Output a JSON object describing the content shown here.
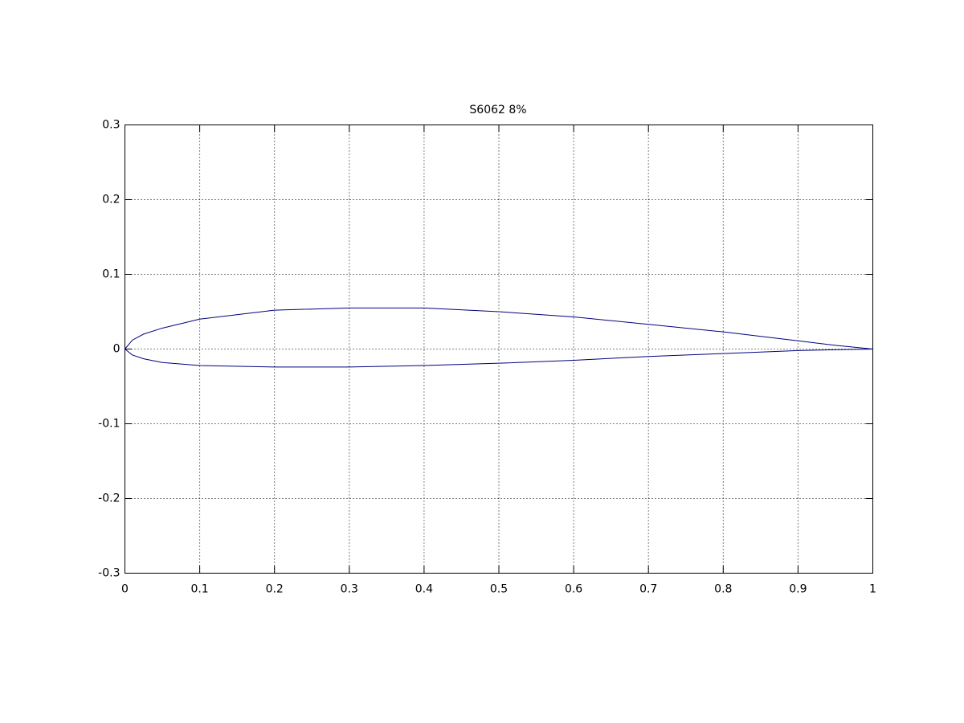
{
  "chart_data": {
    "type": "line",
    "title": "S6062 8%",
    "x": [
      0,
      0.01,
      0.025,
      0.05,
      0.1,
      0.2,
      0.3,
      0.4,
      0.5,
      0.6,
      0.7,
      0.8,
      0.9,
      0.95,
      1
    ],
    "series": [
      {
        "color": "#00007f",
        "values": [
          0,
          0.012,
          0.02,
          0.028,
          0.04,
          0.052,
          0.055,
          0.055,
          0.05,
          0.043,
          0.033,
          0.023,
          0.011,
          0.005,
          0
        ]
      },
      {
        "color": "#00007f",
        "values": [
          0,
          -0.008,
          -0.013,
          -0.018,
          -0.022,
          -0.024,
          -0.024,
          -0.022,
          -0.019,
          -0.015,
          -0.01,
          -0.006,
          -0.002,
          -0.001,
          0
        ]
      }
    ],
    "xlim": [
      0,
      1
    ],
    "ylim": [
      -0.3,
      0.3
    ],
    "xticks": [
      0,
      0.1,
      0.2,
      0.3,
      0.4,
      0.5,
      0.6,
      0.7,
      0.8,
      0.9,
      1
    ],
    "yticks": [
      -0.3,
      -0.2,
      -0.1,
      0,
      0.1,
      0.2,
      0.3
    ],
    "grid": true
  }
}
